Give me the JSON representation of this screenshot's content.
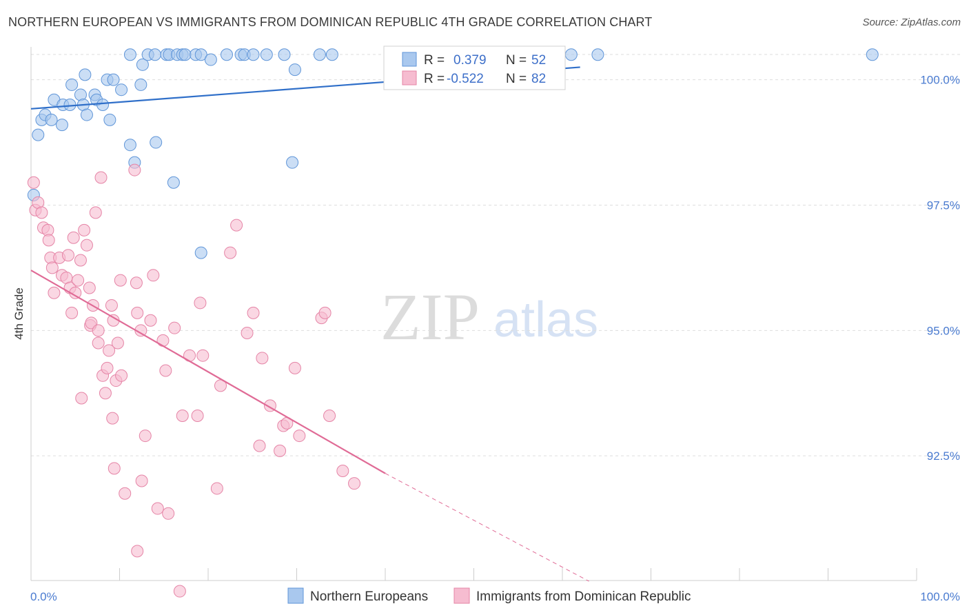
{
  "title": "NORTHERN EUROPEAN VS IMMIGRANTS FROM DOMINICAN REPUBLIC 4TH GRADE CORRELATION CHART",
  "source": "Source: ZipAtlas.com",
  "watermark": {
    "zip": "ZIP",
    "atlas": "atlas"
  },
  "colors": {
    "blue_fill": "#a9c8ee",
    "blue_stroke": "#5f95d8",
    "blue_line": "#2f6fc9",
    "pink_fill": "#f6bcd0",
    "pink_stroke": "#e584a6",
    "pink_line": "#e06b96",
    "tick_label": "#4a7bd0",
    "grid": "#dddddd"
  },
  "chart_data": {
    "type": "scatter",
    "title": "NORTHERN EUROPEAN VS IMMIGRANTS FROM DOMINICAN REPUBLIC 4TH GRADE CORRELATION CHART",
    "xlabel": "",
    "ylabel": "4th Grade",
    "xlim": [
      0,
      100
    ],
    "ylim": [
      90.0,
      100.8
    ],
    "x_tick_labels": [
      {
        "value": 0,
        "label": "0.0%"
      },
      {
        "value": 100,
        "label": "100.0%"
      }
    ],
    "y_tick_labels": [
      {
        "value": 100.0,
        "label": "100.0%"
      },
      {
        "value": 97.5,
        "label": "97.5%"
      },
      {
        "value": 95.0,
        "label": "95.0%"
      },
      {
        "value": 92.5,
        "label": "92.5%"
      }
    ],
    "legend": [
      {
        "name": "R = ",
        "r": "0.379",
        "n_label": "N = ",
        "n": "52"
      },
      {
        "name": "R = ",
        "r": "-0.522",
        "n_label": "N = ",
        "n": "82"
      }
    ],
    "series": [
      {
        "name": "Northern Europeans",
        "color": "#a9c8ee",
        "trend": {
          "x": [
            0,
            62
          ],
          "y": [
            99.42,
            100.25
          ]
        },
        "points": [
          {
            "x": 0.3,
            "y": 97.7
          },
          {
            "x": 0.8,
            "y": 98.9
          },
          {
            "x": 1.2,
            "y": 99.2
          },
          {
            "x": 1.6,
            "y": 99.3
          },
          {
            "x": 2.3,
            "y": 99.2
          },
          {
            "x": 2.6,
            "y": 99.6
          },
          {
            "x": 3.5,
            "y": 99.1
          },
          {
            "x": 3.6,
            "y": 99.5
          },
          {
            "x": 4.4,
            "y": 99.5
          },
          {
            "x": 4.6,
            "y": 99.9
          },
          {
            "x": 5.6,
            "y": 99.7
          },
          {
            "x": 5.9,
            "y": 99.5
          },
          {
            "x": 6.1,
            "y": 100.1
          },
          {
            "x": 6.3,
            "y": 99.3
          },
          {
            "x": 7.2,
            "y": 99.7
          },
          {
            "x": 7.4,
            "y": 99.6
          },
          {
            "x": 8.1,
            "y": 99.5
          },
          {
            "x": 8.6,
            "y": 100.0
          },
          {
            "x": 8.9,
            "y": 99.2
          },
          {
            "x": 9.3,
            "y": 100.0
          },
          {
            "x": 10.2,
            "y": 99.8
          },
          {
            "x": 11.2,
            "y": 100.5
          },
          {
            "x": 11.2,
            "y": 98.7
          },
          {
            "x": 11.7,
            "y": 98.35
          },
          {
            "x": 12.4,
            "y": 99.9
          },
          {
            "x": 12.6,
            "y": 100.3
          },
          {
            "x": 13.2,
            "y": 100.5
          },
          {
            "x": 14.0,
            "y": 100.5
          },
          {
            "x": 14.1,
            "y": 98.75
          },
          {
            "x": 15.3,
            "y": 100.5
          },
          {
            "x": 15.6,
            "y": 100.5
          },
          {
            "x": 16.1,
            "y": 97.95
          },
          {
            "x": 16.5,
            "y": 100.5
          },
          {
            "x": 17.1,
            "y": 100.5
          },
          {
            "x": 17.4,
            "y": 100.5
          },
          {
            "x": 18.6,
            "y": 100.5
          },
          {
            "x": 19.2,
            "y": 100.5
          },
          {
            "x": 19.2,
            "y": 96.55
          },
          {
            "x": 20.3,
            "y": 100.4
          },
          {
            "x": 22.1,
            "y": 100.5
          },
          {
            "x": 23.7,
            "y": 100.5
          },
          {
            "x": 24.1,
            "y": 100.5
          },
          {
            "x": 25.1,
            "y": 100.5
          },
          {
            "x": 26.6,
            "y": 100.5
          },
          {
            "x": 28.6,
            "y": 100.5
          },
          {
            "x": 29.5,
            "y": 98.35
          },
          {
            "x": 29.8,
            "y": 100.2
          },
          {
            "x": 32.6,
            "y": 100.5
          },
          {
            "x": 34.0,
            "y": 100.5
          },
          {
            "x": 61.0,
            "y": 100.5
          },
          {
            "x": 64.0,
            "y": 100.5
          },
          {
            "x": 95.0,
            "y": 100.5
          }
        ]
      },
      {
        "name": "Immigrants from Dominican Republic",
        "color": "#f6bcd0",
        "trend": {
          "x": [
            0,
            40
          ],
          "y": [
            96.2,
            92.15
          ]
        },
        "trend_dashed": {
          "x": [
            40,
            63
          ],
          "y": [
            92.15,
            90.0
          ]
        },
        "points": [
          {
            "x": 0.3,
            "y": 97.95
          },
          {
            "x": 0.5,
            "y": 97.4
          },
          {
            "x": 0.8,
            "y": 97.55
          },
          {
            "x": 1.2,
            "y": 97.35
          },
          {
            "x": 1.4,
            "y": 97.05
          },
          {
            "x": 1.9,
            "y": 97.0
          },
          {
            "x": 2.0,
            "y": 96.8
          },
          {
            "x": 2.2,
            "y": 96.45
          },
          {
            "x": 2.4,
            "y": 96.25
          },
          {
            "x": 2.6,
            "y": 95.75
          },
          {
            "x": 3.2,
            "y": 96.45
          },
          {
            "x": 3.5,
            "y": 96.1
          },
          {
            "x": 4.0,
            "y": 96.05
          },
          {
            "x": 4.2,
            "y": 96.5
          },
          {
            "x": 4.4,
            "y": 95.85
          },
          {
            "x": 4.6,
            "y": 95.35
          },
          {
            "x": 4.8,
            "y": 96.85
          },
          {
            "x": 5.0,
            "y": 95.75
          },
          {
            "x": 5.3,
            "y": 96.0
          },
          {
            "x": 5.6,
            "y": 96.4
          },
          {
            "x": 5.7,
            "y": 93.65
          },
          {
            "x": 6.0,
            "y": 97.0
          },
          {
            "x": 6.3,
            "y": 96.7
          },
          {
            "x": 6.6,
            "y": 95.85
          },
          {
            "x": 6.7,
            "y": 95.1
          },
          {
            "x": 6.8,
            "y": 95.15
          },
          {
            "x": 7.0,
            "y": 95.5
          },
          {
            "x": 7.3,
            "y": 97.35
          },
          {
            "x": 7.6,
            "y": 95.0
          },
          {
            "x": 7.6,
            "y": 94.75
          },
          {
            "x": 7.9,
            "y": 98.05
          },
          {
            "x": 8.1,
            "y": 94.1
          },
          {
            "x": 8.4,
            "y": 93.75
          },
          {
            "x": 8.6,
            "y": 94.25
          },
          {
            "x": 8.8,
            "y": 94.6
          },
          {
            "x": 9.1,
            "y": 95.5
          },
          {
            "x": 9.2,
            "y": 93.25
          },
          {
            "x": 9.3,
            "y": 95.2
          },
          {
            "x": 9.4,
            "y": 92.25
          },
          {
            "x": 9.6,
            "y": 94.0
          },
          {
            "x": 9.8,
            "y": 94.75
          },
          {
            "x": 10.1,
            "y": 96.0
          },
          {
            "x": 10.2,
            "y": 94.1
          },
          {
            "x": 10.6,
            "y": 91.75
          },
          {
            "x": 11.7,
            "y": 98.2
          },
          {
            "x": 11.9,
            "y": 95.95
          },
          {
            "x": 12.0,
            "y": 95.35
          },
          {
            "x": 12.0,
            "y": 90.6
          },
          {
            "x": 12.4,
            "y": 95.0
          },
          {
            "x": 12.5,
            "y": 92.0
          },
          {
            "x": 12.9,
            "y": 92.9
          },
          {
            "x": 13.5,
            "y": 95.2
          },
          {
            "x": 13.8,
            "y": 96.1
          },
          {
            "x": 14.3,
            "y": 91.45
          },
          {
            "x": 14.9,
            "y": 94.8
          },
          {
            "x": 15.2,
            "y": 94.2
          },
          {
            "x": 15.5,
            "y": 91.35
          },
          {
            "x": 16.2,
            "y": 95.05
          },
          {
            "x": 16.8,
            "y": 89.8
          },
          {
            "x": 17.1,
            "y": 93.3
          },
          {
            "x": 17.9,
            "y": 94.5
          },
          {
            "x": 18.8,
            "y": 93.3
          },
          {
            "x": 19.1,
            "y": 95.55
          },
          {
            "x": 19.4,
            "y": 94.5
          },
          {
            "x": 21.0,
            "y": 91.85
          },
          {
            "x": 21.4,
            "y": 93.9
          },
          {
            "x": 22.5,
            "y": 96.55
          },
          {
            "x": 23.2,
            "y": 97.1
          },
          {
            "x": 24.4,
            "y": 94.95
          },
          {
            "x": 25.1,
            "y": 95.35
          },
          {
            "x": 25.8,
            "y": 92.7
          },
          {
            "x": 26.1,
            "y": 94.45
          },
          {
            "x": 27.0,
            "y": 93.5
          },
          {
            "x": 28.1,
            "y": 92.6
          },
          {
            "x": 28.5,
            "y": 93.1
          },
          {
            "x": 28.9,
            "y": 93.15
          },
          {
            "x": 29.8,
            "y": 94.25
          },
          {
            "x": 30.3,
            "y": 92.9
          },
          {
            "x": 32.8,
            "y": 95.25
          },
          {
            "x": 33.2,
            "y": 95.35
          },
          {
            "x": 33.7,
            "y": 93.3
          },
          {
            "x": 35.2,
            "y": 92.2
          },
          {
            "x": 36.5,
            "y": 91.95
          }
        ]
      }
    ]
  }
}
